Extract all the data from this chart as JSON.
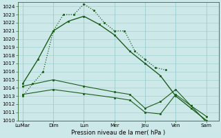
{
  "xlabel": "Pression niveau de la mer( hPa )",
  "ylim": [
    1010,
    1024.5
  ],
  "yticks": [
    1010,
    1011,
    1012,
    1013,
    1014,
    1015,
    1016,
    1017,
    1018,
    1019,
    1020,
    1021,
    1022,
    1023,
    1024
  ],
  "xtick_labels": [
    "LuMar",
    "Dim",
    "Lun",
    "Mer",
    "Jeu",
    "Ven",
    "Sam"
  ],
  "xtick_positions": [
    0,
    1,
    2,
    3,
    4,
    5,
    6
  ],
  "xlim": [
    -0.15,
    6.4
  ],
  "background_color": "#cce8e8",
  "grid_color": "#99cccc",
  "line_color": "#1a5c1a",
  "series1_x": [
    0,
    0.33,
    0.67,
    1.0,
    1.33,
    1.67,
    2.0,
    2.33,
    2.67,
    3.0,
    3.33,
    3.67,
    4.0,
    4.33,
    4.67
  ],
  "series1_y": [
    1013.0,
    1014.5,
    1016.0,
    1021.0,
    1023.0,
    1023.0,
    1024.3,
    1023.5,
    1022.0,
    1021.0,
    1021.0,
    1018.5,
    1017.5,
    1016.5,
    1016.2
  ],
  "series1_style": "dotted",
  "series2_x": [
    0,
    0.5,
    1.0,
    1.5,
    2.0,
    2.5,
    3.0,
    3.5,
    4.0,
    4.5,
    5.0,
    5.5,
    6.0
  ],
  "series2_y": [
    1014.5,
    1017.5,
    1021.0,
    1022.2,
    1022.8,
    1021.8,
    1020.5,
    1018.5,
    1017.0,
    1015.5,
    1013.0,
    1011.5,
    1010.0
  ],
  "series2_style": "solid",
  "series3_x": [
    0,
    1,
    2,
    3,
    3.5,
    4,
    4.5,
    5,
    5.5,
    6
  ],
  "series3_y": [
    1014.2,
    1015.0,
    1014.2,
    1013.5,
    1013.2,
    1011.5,
    1012.3,
    1013.8,
    1011.8,
    1010.5
  ],
  "series3_style": "solid",
  "series4_x": [
    0,
    1,
    2,
    3,
    3.5,
    4,
    4.5,
    5,
    5.5,
    6
  ],
  "series4_y": [
    1013.2,
    1013.8,
    1013.3,
    1012.8,
    1012.5,
    1011.0,
    1010.8,
    1013.2,
    1011.8,
    1009.8
  ],
  "series4_style": "solid",
  "xlabel_fontsize": 6.0,
  "tick_fontsize": 5.2
}
